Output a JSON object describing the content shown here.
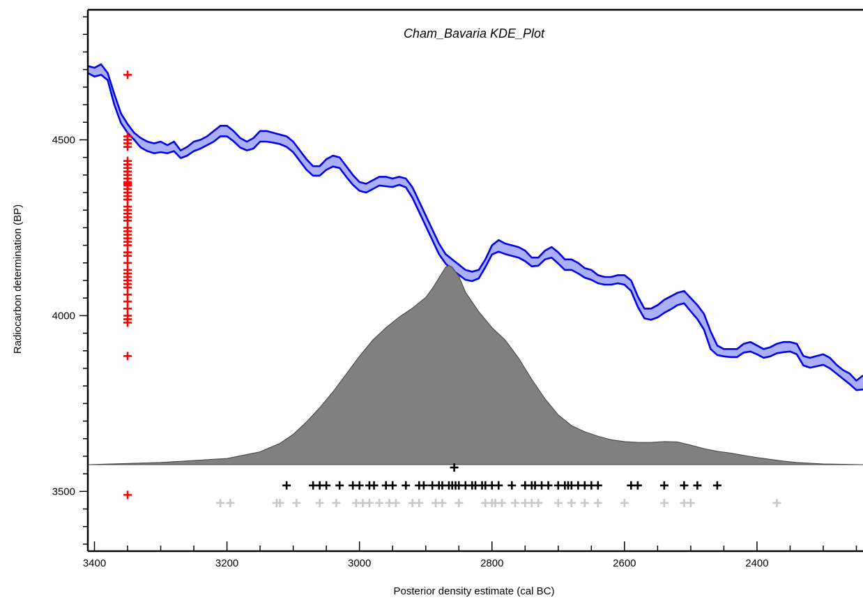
{
  "chart_data": {
    "type": "line",
    "title": "Cham_Bavaria KDE_Plot",
    "xlabel": "Posterior density estimate (cal BC)",
    "ylabel": "Radiocarbon determination (BP)",
    "x_axis_direction": "decreasing (BC)",
    "xlim": [
      3410,
      2240
    ],
    "ylim": [
      3330,
      4870
    ],
    "x_ticks": [
      3400,
      3200,
      3000,
      2800,
      2600,
      2400
    ],
    "y_ticks": [
      3500,
      4000,
      4500
    ],
    "grid": false,
    "colors": {
      "calibration_band": "#0000ee",
      "calibration_fill": "#aab0ff",
      "kde_fill": "#808080",
      "date_markers": "#ff0000",
      "posterior_markers": "#000000",
      "prior_markers": "#c8c8c8"
    },
    "series": [
      {
        "kind": "calibration-curve-band",
        "x": [
          3410,
          3400,
          3390,
          3380,
          3370,
          3360,
          3350,
          3340,
          3330,
          3320,
          3310,
          3300,
          3290,
          3280,
          3270,
          3260,
          3250,
          3240,
          3230,
          3220,
          3210,
          3200,
          3190,
          3180,
          3170,
          3160,
          3150,
          3140,
          3130,
          3120,
          3110,
          3100,
          3090,
          3080,
          3070,
          3060,
          3050,
          3040,
          3030,
          3020,
          3010,
          3000,
          2990,
          2980,
          2970,
          2960,
          2950,
          2940,
          2930,
          2920,
          2910,
          2900,
          2890,
          2880,
          2870,
          2860,
          2850,
          2840,
          2830,
          2820,
          2810,
          2800,
          2790,
          2780,
          2770,
          2760,
          2750,
          2740,
          2730,
          2720,
          2710,
          2700,
          2690,
          2680,
          2670,
          2660,
          2650,
          2640,
          2630,
          2620,
          2610,
          2600,
          2590,
          2580,
          2570,
          2560,
          2550,
          2540,
          2530,
          2520,
          2510,
          2500,
          2490,
          2480,
          2470,
          2460,
          2450,
          2440,
          2430,
          2420,
          2410,
          2400,
          2390,
          2380,
          2370,
          2360,
          2350,
          2340,
          2330,
          2320,
          2310,
          2300,
          2290,
          2280,
          2270,
          2260,
          2250,
          2240
        ],
        "upper": [
          4710,
          4705,
          4715,
          4690,
          4630,
          4575,
          4545,
          4520,
          4505,
          4495,
          4490,
          4495,
          4485,
          4495,
          4470,
          4480,
          4495,
          4500,
          4510,
          4525,
          4540,
          4540,
          4525,
          4505,
          4495,
          4505,
          4525,
          4525,
          4520,
          4515,
          4510,
          4495,
          4470,
          4445,
          4425,
          4425,
          4445,
          4455,
          4450,
          4425,
          4400,
          4380,
          4375,
          4385,
          4395,
          4395,
          4390,
          4395,
          4390,
          4365,
          4325,
          4285,
          4245,
          4205,
          4175,
          4160,
          4145,
          4130,
          4125,
          4130,
          4160,
          4200,
          4215,
          4205,
          4200,
          4195,
          4185,
          4165,
          4165,
          4185,
          4195,
          4180,
          4160,
          4160,
          4150,
          4135,
          4130,
          4115,
          4110,
          4110,
          4115,
          4115,
          4100,
          4055,
          4020,
          4020,
          4030,
          4045,
          4055,
          4065,
          4070,
          4050,
          4030,
          4005,
          3955,
          3915,
          3905,
          3905,
          3905,
          3920,
          3925,
          3915,
          3905,
          3910,
          3920,
          3925,
          3925,
          3920,
          3885,
          3880,
          3885,
          3890,
          3880,
          3860,
          3845,
          3835,
          3815,
          3830
        ],
        "lower": [
          4690,
          4680,
          4685,
          4670,
          4600,
          4548,
          4520,
          4500,
          4478,
          4468,
          4462,
          4465,
          4462,
          4468,
          4448,
          4455,
          4468,
          4475,
          4485,
          4495,
          4510,
          4510,
          4496,
          4478,
          4470,
          4475,
          4495,
          4495,
          4492,
          4488,
          4480,
          4465,
          4440,
          4415,
          4398,
          4398,
          4415,
          4424,
          4420,
          4395,
          4372,
          4355,
          4350,
          4360,
          4370,
          4368,
          4366,
          4372,
          4365,
          4335,
          4295,
          4255,
          4215,
          4175,
          4148,
          4130,
          4116,
          4102,
          4098,
          4106,
          4138,
          4174,
          4182,
          4175,
          4170,
          4165,
          4155,
          4140,
          4142,
          4160,
          4165,
          4148,
          4130,
          4130,
          4120,
          4108,
          4102,
          4092,
          4088,
          4088,
          4092,
          4088,
          4070,
          4025,
          3992,
          3988,
          3995,
          4008,
          4018,
          4030,
          4035,
          4012,
          3990,
          3960,
          3905,
          3888,
          3884,
          3882,
          3882,
          3895,
          3898,
          3890,
          3880,
          3884,
          3893,
          3896,
          3898,
          3890,
          3858,
          3852,
          3856,
          3860,
          3850,
          3835,
          3820,
          3805,
          3788,
          3790
        ]
      },
      {
        "kind": "kde-density",
        "x": [
          3410,
          3300,
          3200,
          3150,
          3120,
          3100,
          3080,
          3060,
          3040,
          3020,
          3000,
          2980,
          2960,
          2940,
          2920,
          2900,
          2890,
          2880,
          2870,
          2865,
          2860,
          2850,
          2840,
          2820,
          2800,
          2780,
          2760,
          2740,
          2720,
          2700,
          2680,
          2660,
          2640,
          2620,
          2600,
          2580,
          2560,
          2540,
          2520,
          2500,
          2480,
          2460,
          2440,
          2420,
          2400,
          2380,
          2360,
          2340,
          2300,
          2240
        ],
        "density": [
          0,
          0.012,
          0.035,
          0.072,
          0.12,
          0.17,
          0.24,
          0.32,
          0.41,
          0.51,
          0.61,
          0.7,
          0.77,
          0.83,
          0.88,
          0.94,
          0.99,
          1.05,
          1.11,
          1.12,
          1.11,
          1.06,
          0.97,
          0.86,
          0.77,
          0.7,
          0.6,
          0.48,
          0.37,
          0.28,
          0.22,
          0.185,
          0.16,
          0.14,
          0.13,
          0.125,
          0.125,
          0.13,
          0.128,
          0.11,
          0.09,
          0.075,
          0.065,
          0.052,
          0.04,
          0.03,
          0.02,
          0.012,
          0.004,
          0
        ]
      },
      {
        "kind": "red-markers",
        "x": 3350,
        "y": [
          4685,
          4510,
          4500,
          4490,
          4480,
          4440,
          4430,
          4420,
          4410,
          4400,
          4390,
          4380,
          4375,
          4370,
          4360,
          4350,
          4340,
          4330,
          4310,
          4300,
          4290,
          4280,
          4270,
          4250,
          4240,
          4230,
          4220,
          4210,
          4200,
          4180,
          4170,
          4150,
          4130,
          4120,
          4110,
          4100,
          4090,
          4080,
          4060,
          4040,
          4020,
          4000,
          3990,
          3980,
          3885,
          3490
        ]
      },
      {
        "kind": "posterior-markers-black",
        "y_row": 3517,
        "x": [
          3110,
          3070,
          3060,
          3050,
          3030,
          3010,
          3000,
          2985,
          2978,
          2960,
          2950,
          2930,
          2910,
          2903,
          2890,
          2880,
          2875,
          2865,
          2860,
          2855,
          2850,
          2840,
          2830,
          2825,
          2815,
          2810,
          2800,
          2790,
          2770,
          2750,
          2740,
          2735,
          2725,
          2715,
          2700,
          2690,
          2685,
          2680,
          2670,
          2660,
          2650,
          2640,
          2590,
          2580,
          2540,
          2510,
          2490,
          2460
        ],
        "x_top": 2857,
        "y_top": 3568
      },
      {
        "kind": "prior-markers-grey",
        "y_row": 3467,
        "x": [
          3210,
          3195,
          3125,
          3120,
          3095,
          3060,
          3035,
          3005,
          2995,
          2985,
          2970,
          2955,
          2945,
          2920,
          2910,
          2885,
          2875,
          2850,
          2810,
          2800,
          2795,
          2785,
          2765,
          2750,
          2740,
          2730,
          2700,
          2680,
          2660,
          2640,
          2600,
          2540,
          2510,
          2500,
          2370
        ]
      }
    ]
  }
}
